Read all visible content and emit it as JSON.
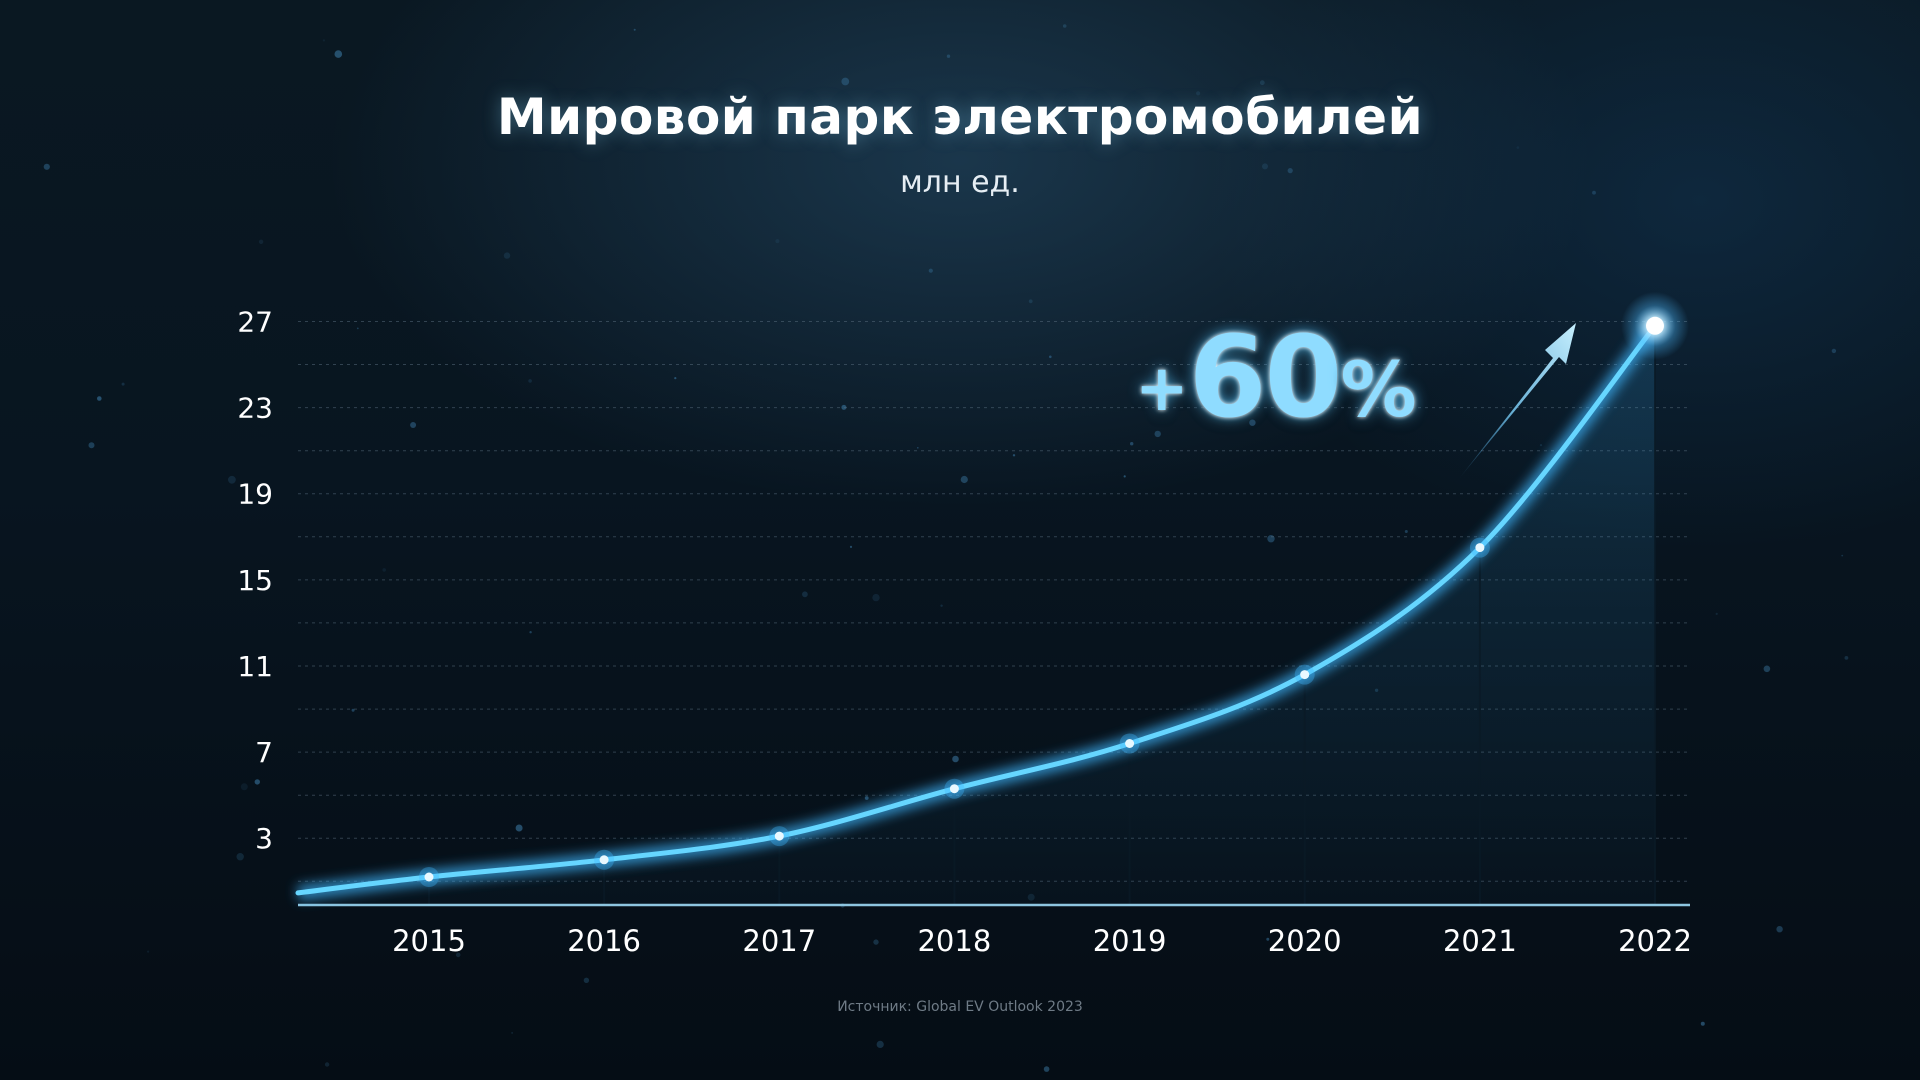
{
  "title": "Мировой парк электромобилей",
  "subtitle": "млн ед.",
  "source": "Источник: Global EV Outlook 2023",
  "callout": {
    "plus": "+",
    "number": "60",
    "percent": "%"
  },
  "colors": {
    "line": "#66d6ff",
    "glow": "#3fb8ff",
    "axis": "#8ec6e0",
    "grid": "#5a6f80",
    "tick_label": "#ffffff"
  },
  "chart_data": {
    "type": "line",
    "title": "Мировой парк электромобилей",
    "subtitle": "млн ед.",
    "categories": [
      "2015",
      "2016",
      "2017",
      "2018",
      "2019",
      "2020",
      "2021",
      "2022"
    ],
    "series": [
      {
        "values": [
          1.2,
          2.0,
          3.1,
          5.3,
          7.4,
          10.6,
          16.5,
          26.8
        ]
      }
    ],
    "yticks": [
      3,
      7,
      11,
      15,
      19,
      23,
      27
    ],
    "ylim": [
      -0.1,
      27.3
    ],
    "grid": true,
    "annotation": "+60%"
  }
}
